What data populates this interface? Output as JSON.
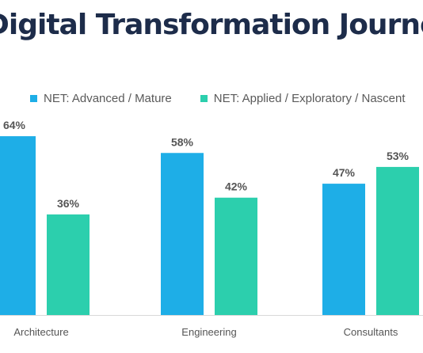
{
  "chart_data": {
    "type": "bar",
    "title": "Digital Transformation Journey Today",
    "categories": [
      "Architecture",
      "Engineering",
      "Consultants"
    ],
    "series": [
      {
        "name": "NET: Advanced / Mature",
        "color": "#1eaee7",
        "values": [
          64,
          58,
          47
        ]
      },
      {
        "name": "NET: Applied / Exploratory / Nascent",
        "color": "#2ccfad",
        "values": [
          36,
          42,
          53
        ]
      }
    ],
    "value_suffix": "%",
    "ylim": [
      0,
      100
    ],
    "grid": false,
    "legend_position": "top"
  }
}
